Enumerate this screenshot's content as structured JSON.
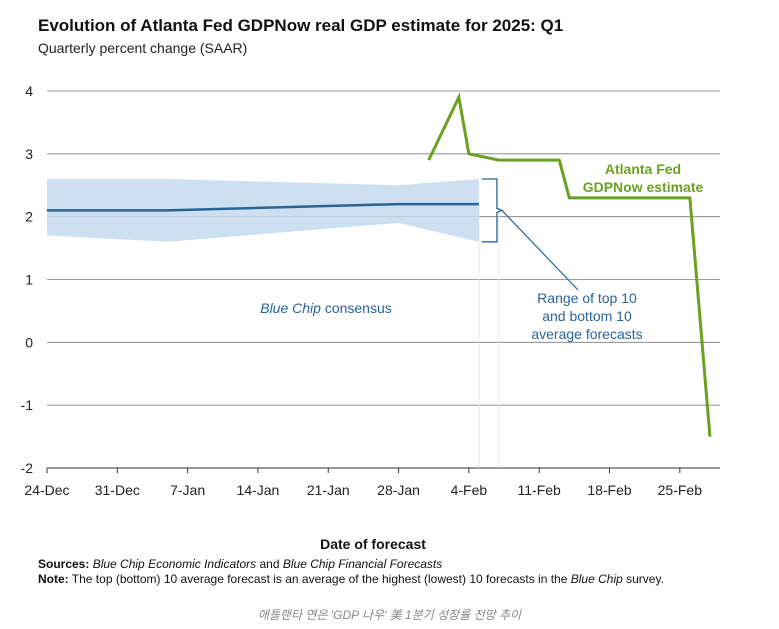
{
  "chart_data": {
    "type": "line",
    "title": "Evolution of Atlanta Fed GDPNow real GDP estimate for 2025: Q1",
    "subtitle": "Quarterly percent change (SAAR)",
    "xlabel": "Date of forecast",
    "ylabel": "",
    "ylim": [
      -2,
      4
    ],
    "yticks": [
      "4",
      "3",
      "2",
      "1",
      "0",
      "-1",
      "-2"
    ],
    "ytick_values": [
      4,
      3,
      2,
      1,
      0,
      -1,
      -2
    ],
    "xlim": [
      0,
      67
    ],
    "xtick_labels": [
      "24-Dec",
      "31-Dec",
      "7-Jan",
      "14-Jan",
      "21-Jan",
      "28-Jan",
      "4-Feb",
      "11-Feb",
      "18-Feb",
      "25-Feb"
    ],
    "xtick_days": [
      0,
      7,
      14,
      21,
      28,
      35,
      42,
      49,
      56,
      63
    ],
    "grid": true,
    "series": [
      {
        "name": "Atlanta Fed GDPNow estimate",
        "color": "#6aa122",
        "day": [
          38,
          41,
          42,
          45,
          51,
          52,
          64,
          66
        ],
        "values": [
          2.9,
          3.9,
          3.0,
          2.9,
          2.9,
          2.3,
          2.3,
          -1.5
        ]
      },
      {
        "name": "Blue Chip consensus",
        "color": "#2a6496",
        "day": [
          0,
          12,
          35,
          43
        ],
        "values": [
          2.1,
          2.1,
          2.2,
          2.2
        ]
      }
    ],
    "range": {
      "name": "Range of top 10 and bottom 10 average forecasts",
      "color": "#c4dbee",
      "day": [
        0,
        12,
        35,
        43
      ],
      "upper": [
        2.6,
        2.6,
        2.5,
        2.6
      ],
      "lower": [
        1.7,
        1.6,
        1.9,
        1.6
      ]
    },
    "annotations": {
      "gdpnow_line1": "Atlanta Fed",
      "gdpnow_line2": "GDPNow estimate",
      "consensus_italic": "Blue Chip",
      "consensus_rest": "consensus",
      "range_line1": "Range of top 10",
      "range_line2": "and bottom 10",
      "range_line3": "average forecasts"
    }
  },
  "notes": {
    "sources_label": "Sources:",
    "sources_italic1": "Blue Chip Economic Indicators",
    "sources_and": "and",
    "sources_italic2": "Blue Chip Financial Forecasts",
    "note_label": "Note:",
    "note_text": "The top (bottom) 10 average forecast is an average of the highest (lowest) 10 forecasts in the",
    "note_italic": "Blue Chip",
    "note_end": "survey."
  },
  "caption": "애틀랜타 연은 'GDP 나우' 美 1분기 성장률 전망 추이"
}
